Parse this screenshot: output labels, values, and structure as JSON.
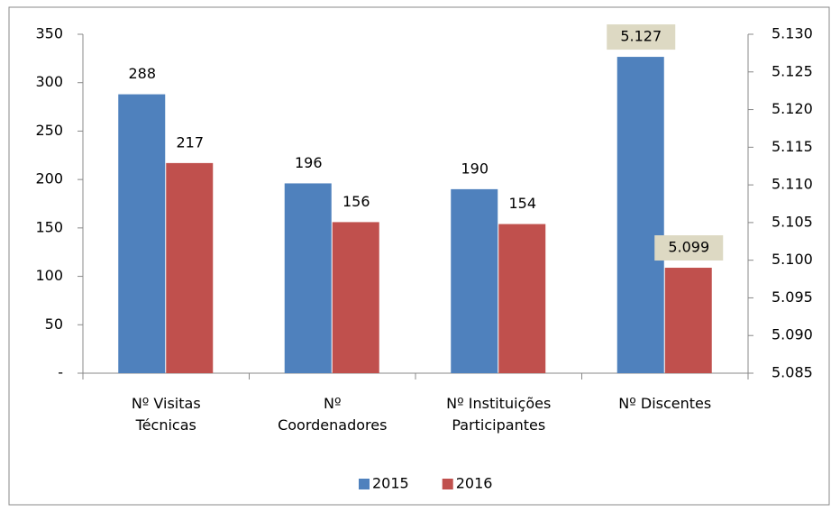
{
  "chart_data": {
    "type": "bar",
    "categories": [
      "Nº Visitas Técnicas",
      "Nº Coordenadores",
      "Nº Instituições Participantes",
      "Nº Discentes"
    ],
    "series": [
      {
        "name": "2015",
        "color": "#4f81bd",
        "values": [
          288,
          196,
          190,
          5127
        ],
        "value_labels": [
          "288",
          "196",
          "190",
          "5.127"
        ],
        "axes": [
          "y",
          "y",
          "y",
          "y2"
        ]
      },
      {
        "name": "2016",
        "color": "#c0504d",
        "values": [
          217,
          156,
          154,
          5099
        ],
        "value_labels": [
          "217",
          "156",
          "154",
          "5.099"
        ],
        "axes": [
          "y",
          "y",
          "y",
          "y2"
        ]
      }
    ],
    "ylim": [
      0,
      350
    ],
    "yticks": [
      {
        "value": 0,
        "label": "-"
      },
      50,
      100,
      150,
      200,
      250,
      300,
      350
    ],
    "y2lim": [
      5085,
      5130
    ],
    "y2ticks": [
      {
        "value": 5085,
        "label": "5.085"
      },
      {
        "value": 5090,
        "label": "5.090"
      },
      {
        "value": 5095,
        "label": "5.095"
      },
      {
        "value": 5100,
        "label": "5.100"
      },
      {
        "value": 5105,
        "label": "5.105"
      },
      {
        "value": 5110,
        "label": "5.110"
      },
      {
        "value": 5115,
        "label": "5.115"
      },
      {
        "value": 5120,
        "label": "5.120"
      },
      {
        "value": 5125,
        "label": "5.125"
      },
      {
        "value": 5130,
        "label": "5.130"
      }
    ],
    "grid": false,
    "legend": "bottom"
  }
}
